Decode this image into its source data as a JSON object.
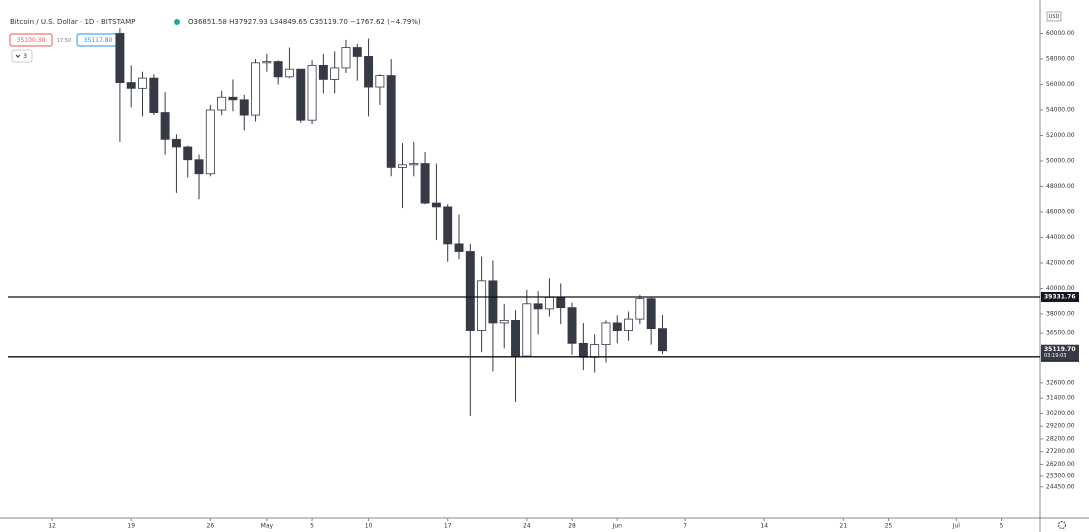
{
  "header": {
    "symbol": "Bitcoin / U.S. Dollar · 1D · BITSTAMP",
    "ohlc": "O36851.58 H37927.93 L34849.65 C35119.70 −1767.62 (−4.79%)"
  },
  "toolbar": {
    "sell": "35100.30",
    "spread": "17.50",
    "buy": "35117.80",
    "count": "3"
  },
  "chart_data": {
    "type": "candlestick",
    "x": [
      6,
      7,
      8,
      9,
      10,
      11,
      12,
      13,
      14,
      15,
      16,
      17,
      18,
      19,
      20,
      21,
      22,
      23,
      24,
      25,
      26,
      27,
      28,
      29,
      30,
      31,
      32,
      33,
      34,
      35,
      36,
      37,
      38,
      39,
      40,
      41,
      42,
      43,
      44,
      45,
      46,
      47,
      48,
      49,
      50,
      51,
      52,
      53,
      54
    ],
    "open": [
      60000,
      56150,
      55700,
      56500,
      53800,
      51700,
      51100,
      50100,
      49000,
      54000,
      55000,
      54800,
      53600,
      57700,
      57800,
      56600,
      57200,
      53200,
      57500,
      56400,
      57300,
      58900,
      58200,
      55800,
      56700,
      49500,
      49700,
      49800,
      46700,
      46400,
      43500,
      42900,
      36700,
      40600,
      37300,
      37500,
      34700,
      38800,
      38400,
      39300,
      38500,
      35700,
      34600,
      35600,
      37300,
      36700,
      37600,
      39200,
      36851.58
    ],
    "high": [
      60400,
      57500,
      57000,
      56800,
      55400,
      52100,
      51200,
      50500,
      54400,
      55500,
      56400,
      55200,
      58000,
      58400,
      57900,
      58900,
      57200,
      57900,
      58400,
      58600,
      59500,
      59200,
      59600,
      56800,
      58000,
      51400,
      51500,
      50700,
      49800,
      46600,
      45800,
      43500,
      42500,
      42200,
      38800,
      38300,
      39900,
      39800,
      40800,
      40400,
      38900,
      37300,
      36400,
      37500,
      37900,
      38200,
      39500,
      39300,
      37927.93
    ],
    "low": [
      51500,
      54200,
      53500,
      53600,
      50500,
      47500,
      48700,
      47000,
      48800,
      53600,
      53900,
      52400,
      53100,
      57000,
      56000,
      56500,
      53000,
      52900,
      55300,
      55300,
      56900,
      56300,
      53500,
      54400,
      48800,
      46300,
      48800,
      46600,
      43800,
      42100,
      42300,
      30000,
      35000,
      33500,
      35300,
      31100,
      34600,
      36400,
      37800,
      37200,
      34800,
      33600,
      33400,
      34200,
      35700,
      35900,
      37200,
      35600,
      34849.65
    ],
    "close": [
      56150,
      55700,
      56500,
      53800,
      51700,
      51100,
      50100,
      49000,
      54000,
      55000,
      54800,
      53600,
      57700,
      57800,
      56600,
      57200,
      53200,
      57500,
      56400,
      57300,
      58900,
      58200,
      55800,
      56700,
      49500,
      49700,
      49800,
      46700,
      46400,
      43500,
      42900,
      36700,
      40600,
      37300,
      37500,
      34700,
      38800,
      38400,
      39300,
      38500,
      35700,
      34600,
      35600,
      37300,
      36700,
      37600,
      39200,
      36850,
      35119.7
    ],
    "up_color": "#ffffff",
    "down_color": "#363a45",
    "currency": "USD",
    "xlim": [
      -3.9,
      87.4
    ],
    "xticks": [
      {
        "value": 0,
        "label": "12"
      },
      {
        "value": 7,
        "label": "19"
      },
      {
        "value": 14,
        "label": "26"
      },
      {
        "value": 19,
        "label": "May"
      },
      {
        "value": 23,
        "label": "5"
      },
      {
        "value": 28,
        "label": "10"
      },
      {
        "value": 35,
        "label": "17"
      },
      {
        "value": 42,
        "label": "24"
      },
      {
        "value": 46,
        "label": "28"
      },
      {
        "value": 50,
        "label": "Jun"
      },
      {
        "value": 56,
        "label": "7"
      },
      {
        "value": 63,
        "label": "14"
      },
      {
        "value": 70,
        "label": "21"
      },
      {
        "value": 74,
        "label": "25"
      },
      {
        "value": 80,
        "label": "Jul"
      },
      {
        "value": 84,
        "label": "5"
      }
    ],
    "ylim": [
      22000,
      62000
    ],
    "yticks": [
      {
        "value": 60000,
        "label": "60000.00"
      },
      {
        "value": 58000,
        "label": "58000.00"
      },
      {
        "value": 56000,
        "label": "56000.00"
      },
      {
        "value": 54000,
        "label": "54000.00"
      },
      {
        "value": 52000,
        "label": "52000.00"
      },
      {
        "value": 50000,
        "label": "50000.00"
      },
      {
        "value": 48000,
        "label": "48000.00"
      },
      {
        "value": 46000,
        "label": "46000.00"
      },
      {
        "value": 44000,
        "label": "44000.00"
      },
      {
        "value": 42000,
        "label": "42000.00"
      },
      {
        "value": 40000,
        "label": "40000.00"
      },
      {
        "value": 38000,
        "label": "38000.00"
      },
      {
        "value": 36500,
        "label": "36500.00"
      },
      {
        "value": 32600,
        "label": "32600.00"
      },
      {
        "value": 31400,
        "label": "31400.00"
      },
      {
        "value": 30200,
        "label": "30200.00"
      },
      {
        "value": 29200,
        "label": "29200.00"
      },
      {
        "value": 28200,
        "label": "28200.00"
      },
      {
        "value": 27200,
        "label": "27200.00"
      },
      {
        "value": 26200,
        "label": "26200.00"
      },
      {
        "value": 25300,
        "label": "25300.00"
      },
      {
        "value": 24450,
        "label": "24450.00"
      }
    ],
    "hlines": [
      39331.76,
      34644.09
    ],
    "price_tag": {
      "value": 35119.7,
      "label": "35119.70",
      "countdown": "03:19:03"
    }
  }
}
